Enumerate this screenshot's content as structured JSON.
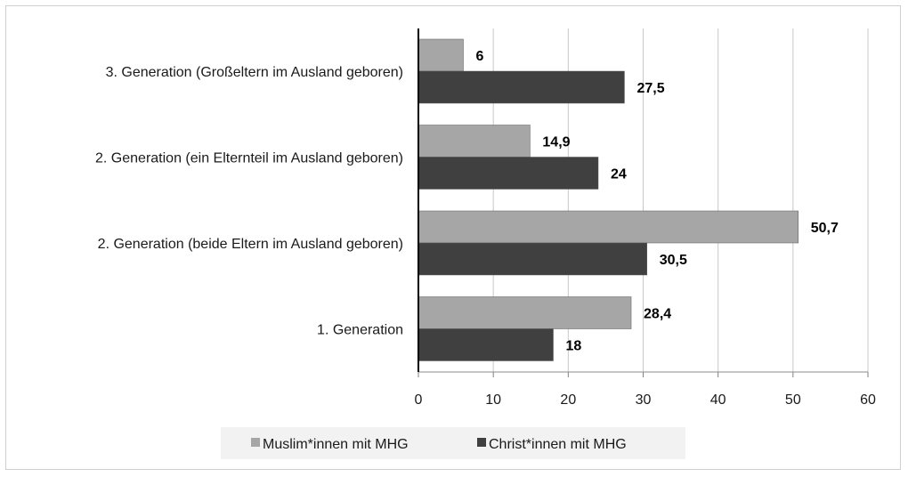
{
  "chart_data": {
    "type": "bar",
    "orientation": "horizontal",
    "categories": [
      "3. Generation (Großeltern im Ausland geboren)",
      "2. Generation (ein Elternteil im Ausland geboren)",
      "2. Generation (beide Eltern im Ausland geboren)",
      "1. Generation"
    ],
    "series": [
      {
        "name": "Muslim*innen mit MHG",
        "values": [
          6,
          14.9,
          50.7,
          28.4
        ],
        "labels": [
          "6",
          "14,9",
          "50,7",
          "28,4"
        ],
        "color": "#a6a6a6"
      },
      {
        "name": "Christ*innen mit MHG",
        "values": [
          27.5,
          24,
          30.5,
          18
        ],
        "labels": [
          "27,5",
          "24",
          "30,5",
          "18"
        ],
        "color": "#404040"
      }
    ],
    "xlim": [
      0,
      60
    ],
    "xticks": [
      0,
      10,
      20,
      30,
      40,
      50,
      60
    ],
    "xtick_labels": [
      "0",
      "10",
      "20",
      "30",
      "40",
      "50",
      "60"
    ],
    "grid": "vertical",
    "legend_position": "bottom",
    "title": "",
    "xlabel": "",
    "ylabel": ""
  }
}
